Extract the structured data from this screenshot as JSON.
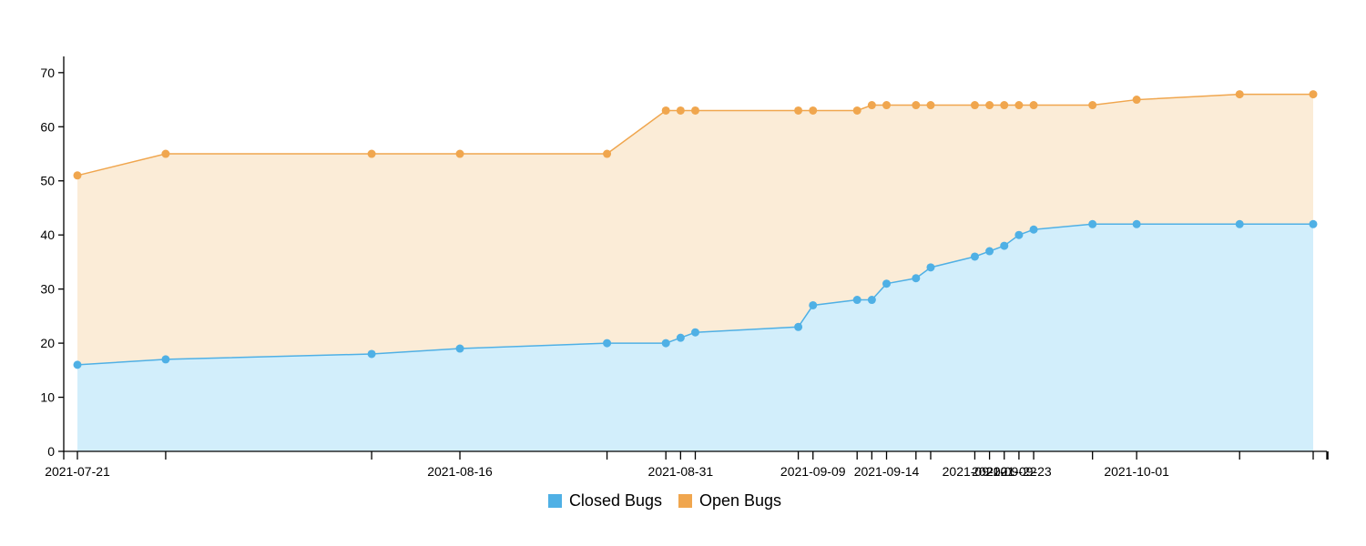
{
  "chart_data": {
    "type": "area",
    "stacked": false,
    "x_type": "date",
    "x": [
      "2021-07-21",
      "2021-07-27",
      "2021-08-10",
      "2021-08-16",
      "2021-08-26",
      "2021-08-30",
      "2021-08-31",
      "2021-09-01",
      "2021-09-08",
      "2021-09-09",
      "2021-09-12",
      "2021-09-13",
      "2021-09-14",
      "2021-09-16",
      "2021-09-17",
      "2021-09-20",
      "2021-09-21",
      "2021-09-22",
      "2021-09-23",
      "2021-09-24",
      "2021-09-28",
      "2021-10-01",
      "2021-10-08",
      "2021-10-13"
    ],
    "series": [
      {
        "name": "Closed Bugs",
        "color": "#4fb0e5",
        "fill": "#d2eefb",
        "values": [
          16,
          17,
          18,
          19,
          20,
          20,
          21,
          22,
          23,
          27,
          28,
          28,
          31,
          32,
          34,
          36,
          37,
          38,
          40,
          41,
          42,
          42,
          42,
          42
        ]
      },
      {
        "name": "Open Bugs",
        "color": "#f0a64e",
        "fill": "#fbecd7",
        "values": [
          51,
          55,
          55,
          55,
          55,
          63,
          63,
          63,
          63,
          63,
          63,
          64,
          64,
          64,
          64,
          64,
          64,
          64,
          64,
          64,
          64,
          65,
          66,
          66
        ]
      }
    ],
    "y_ticks": [
      "0",
      "10",
      "20",
      "30",
      "40",
      "50",
      "60",
      "70"
    ],
    "ylim": [
      0,
      73
    ],
    "x_tick_labels": [
      {
        "date": "2021-07-21",
        "label": "2021-07-21"
      },
      {
        "date": "2021-08-16",
        "label": "2021-08-16"
      },
      {
        "date": "2021-08-31",
        "label": "2021-08-31"
      },
      {
        "date": "2021-09-09",
        "label": "2021-09-09"
      },
      {
        "date": "2021-09-14",
        "label": "2021-09-14"
      },
      {
        "date": "2021-09-20",
        "label": "2021-09-20"
      },
      {
        "date": "2021-09-22",
        "label": "2021-09-22"
      },
      {
        "date": "2021-09-23",
        "label": "2021-09-23"
      },
      {
        "date": "2021-10-01",
        "label": "2021-10-01"
      }
    ],
    "x_tick_marks": [
      "2021-07-21",
      "2021-07-27",
      "2021-08-10",
      "2021-08-16",
      "2021-08-26",
      "2021-08-30",
      "2021-08-31",
      "2021-09-01",
      "2021-09-08",
      "2021-09-09",
      "2021-09-12",
      "2021-09-13",
      "2021-09-14",
      "2021-09-16",
      "2021-09-17",
      "2021-09-20",
      "2021-09-21",
      "2021-09-22",
      "2021-09-23",
      "2021-09-24",
      "2021-09-28",
      "2021-10-01",
      "2021-10-08",
      "2021-10-13",
      "2021-10-14"
    ],
    "legend_position": "bottom-center",
    "grid": false
  }
}
